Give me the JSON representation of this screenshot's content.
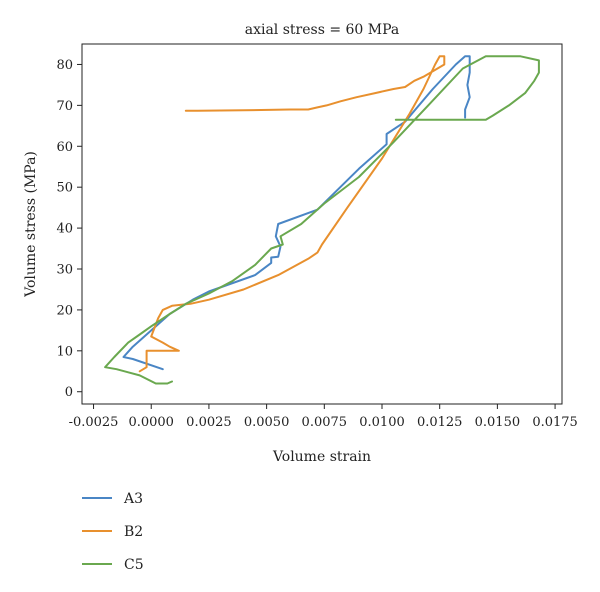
{
  "chart_data": {
    "type": "line",
    "title": "axial stress = 60 MPa",
    "xlabel": "Volume strain",
    "ylabel": "Volume stress (MPa)",
    "xlim": [
      -0.003,
      0.0178
    ],
    "ylim": [
      -3,
      85
    ],
    "xticks": [
      -0.0025,
      0.0,
      0.0025,
      0.005,
      0.0075,
      0.01,
      0.0125,
      0.015,
      0.0175
    ],
    "xtick_labels": [
      "-0.0025",
      "0.0000",
      "0.0025",
      "0.0050",
      "0.0075",
      "0.0100",
      "0.0125",
      "0.0150",
      "0.0175"
    ],
    "yticks": [
      0,
      10,
      20,
      30,
      40,
      50,
      60,
      70,
      80
    ],
    "ytick_labels": [
      "0",
      "10",
      "20",
      "30",
      "40",
      "50",
      "60",
      "70",
      "80"
    ],
    "grid": false,
    "legend_position": "below",
    "series": [
      {
        "name": "A3",
        "color": "#4a86c5",
        "points": [
          [
            0.0005,
            5.5
          ],
          [
            -0.0008,
            8
          ],
          [
            -0.0012,
            8.5
          ],
          [
            -0.0008,
            11
          ],
          [
            -0.0002,
            14
          ],
          [
            0.0008,
            19
          ],
          [
            0.0018,
            22.5
          ],
          [
            0.0025,
            24.5
          ],
          [
            0.0045,
            28.5
          ],
          [
            0.0052,
            31.5
          ],
          [
            0.0052,
            32.8
          ],
          [
            0.0055,
            33
          ],
          [
            0.0056,
            35.5
          ],
          [
            0.0054,
            38
          ],
          [
            0.0055,
            41
          ],
          [
            0.0072,
            44.5
          ],
          [
            0.009,
            54.5
          ],
          [
            0.0102,
            60.5
          ],
          [
            0.0102,
            63
          ],
          [
            0.011,
            66
          ],
          [
            0.0122,
            74
          ],
          [
            0.0132,
            80
          ],
          [
            0.0136,
            82
          ],
          [
            0.0138,
            82
          ],
          [
            0.0138,
            78
          ],
          [
            0.0137,
            75
          ],
          [
            0.0138,
            72
          ],
          [
            0.0136,
            69
          ],
          [
            0.0136,
            67
          ]
        ]
      },
      {
        "name": "B2",
        "color": "#e8902e",
        "points": [
          [
            -0.0005,
            5
          ],
          [
            -0.0002,
            6
          ],
          [
            -0.0002,
            10
          ],
          [
            0.0002,
            10
          ],
          [
            0.0012,
            10
          ],
          [
            0.0008,
            11
          ],
          [
            0.0005,
            12
          ],
          [
            0.0,
            13.5
          ],
          [
            0.0003,
            18
          ],
          [
            0.0005,
            20
          ],
          [
            0.0009,
            21
          ],
          [
            0.0017,
            21.5
          ],
          [
            0.0025,
            22.5
          ],
          [
            0.004,
            25
          ],
          [
            0.0055,
            28.5
          ],
          [
            0.0068,
            32.5
          ],
          [
            0.0072,
            34
          ],
          [
            0.0074,
            36
          ],
          [
            0.0085,
            45
          ],
          [
            0.01,
            57
          ],
          [
            0.0112,
            68
          ],
          [
            0.0118,
            74
          ],
          [
            0.0123,
            80
          ],
          [
            0.0125,
            82
          ],
          [
            0.0127,
            82
          ],
          [
            0.0127,
            80
          ],
          [
            0.0121,
            78
          ],
          [
            0.0118,
            77
          ],
          [
            0.0114,
            76
          ],
          [
            0.011,
            74.5
          ],
          [
            0.0105,
            74
          ],
          [
            0.0097,
            73
          ],
          [
            0.0089,
            72
          ],
          [
            0.0082,
            71
          ],
          [
            0.0076,
            70
          ],
          [
            0.0072,
            69.5
          ],
          [
            0.0068,
            69
          ],
          [
            0.006,
            69
          ],
          [
            0.004,
            68.8
          ],
          [
            0.002,
            68.7
          ],
          [
            0.0015,
            68.7
          ]
        ]
      },
      {
        "name": "C5",
        "color": "#6aa84f",
        "points": [
          [
            0.0009,
            2.5
          ],
          [
            0.0007,
            2
          ],
          [
            0.0002,
            2
          ],
          [
            -0.0005,
            4
          ],
          [
            -0.0015,
            5.5
          ],
          [
            -0.002,
            6
          ],
          [
            -0.0016,
            8.5
          ],
          [
            -0.001,
            12
          ],
          [
            -0.0005,
            14
          ],
          [
            0.0,
            16
          ],
          [
            0.0008,
            19
          ],
          [
            0.0015,
            21.5
          ],
          [
            0.0025,
            24
          ],
          [
            0.0035,
            27
          ],
          [
            0.0045,
            31
          ],
          [
            0.0052,
            35
          ],
          [
            0.0057,
            36
          ],
          [
            0.0056,
            38
          ],
          [
            0.0065,
            41
          ],
          [
            0.0075,
            46
          ],
          [
            0.009,
            52.5
          ],
          [
            0.0105,
            61
          ],
          [
            0.012,
            70
          ],
          [
            0.0135,
            79
          ],
          [
            0.0145,
            82
          ],
          [
            0.016,
            82
          ],
          [
            0.0168,
            81
          ],
          [
            0.0168,
            78
          ],
          [
            0.0166,
            76
          ],
          [
            0.0162,
            73
          ],
          [
            0.0155,
            70
          ],
          [
            0.0148,
            67.5
          ],
          [
            0.0145,
            66.5
          ],
          [
            0.012,
            66.5
          ],
          [
            0.0106,
            66.5
          ]
        ]
      }
    ]
  }
}
